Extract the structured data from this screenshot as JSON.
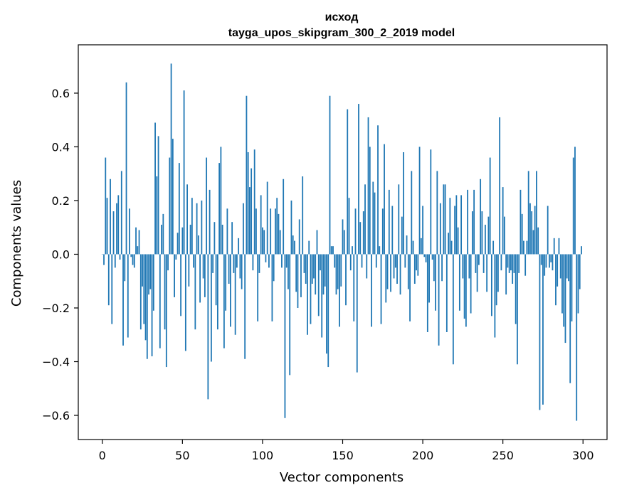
{
  "chart_data": {
    "type": "bar",
    "title": "исход",
    "subtitle": "tayga_upos_skipgram_300_2_2019 model",
    "xlabel": "Vector components",
    "ylabel": "Components values",
    "xlim": [
      -15,
      315
    ],
    "ylim": [
      -0.69,
      0.78
    ],
    "xticks": [
      0,
      50,
      100,
      150,
      200,
      250,
      300
    ],
    "xtick_labels": [
      "0",
      "50",
      "100",
      "150",
      "200",
      "250",
      "300"
    ],
    "yticks": [
      0.6,
      0.4,
      0.2,
      0.0,
      -0.2,
      -0.4,
      -0.6
    ],
    "ytick_labels": [
      "0.6",
      "0.4",
      "0.2",
      "0.0",
      "−0.2",
      "−0.4",
      "−0.6"
    ],
    "bar_color": "#1f77b4",
    "grid": false,
    "values": [
      0.0,
      -0.04,
      0.36,
      0.21,
      -0.19,
      0.28,
      -0.26,
      0.16,
      -0.05,
      0.19,
      0.22,
      -0.02,
      0.31,
      -0.34,
      -0.1,
      0.64,
      -0.31,
      0.17,
      -0.01,
      -0.04,
      -0.05,
      0.1,
      0.03,
      0.09,
      -0.28,
      -0.12,
      -0.26,
      -0.32,
      -0.39,
      -0.15,
      -0.13,
      -0.38,
      -0.21,
      0.49,
      0.29,
      0.44,
      -0.35,
      0.11,
      0.15,
      -0.28,
      -0.42,
      -0.06,
      0.36,
      0.71,
      0.43,
      -0.16,
      -0.02,
      0.08,
      0.34,
      -0.23,
      0.1,
      0.61,
      -0.36,
      0.26,
      -0.12,
      0.11,
      0.21,
      -0.05,
      -0.28,
      0.19,
      0.07,
      -0.18,
      0.2,
      -0.09,
      -0.16,
      0.36,
      -0.54,
      0.24,
      -0.4,
      -0.07,
      0.12,
      -0.19,
      -0.28,
      0.34,
      0.4,
      0.11,
      -0.35,
      -0.21,
      0.17,
      -0.11,
      -0.27,
      0.12,
      -0.07,
      -0.3,
      -0.05,
      0.06,
      -0.09,
      -0.13,
      0.19,
      -0.39,
      0.59,
      0.38,
      0.25,
      0.32,
      -0.06,
      0.39,
      0.17,
      -0.25,
      -0.07,
      0.22,
      0.1,
      0.09,
      -0.03,
      0.27,
      -0.05,
      0.17,
      -0.25,
      -0.1,
      0.17,
      0.21,
      0.15,
      0.09,
      -0.05,
      0.28,
      -0.61,
      -0.05,
      -0.13,
      -0.45,
      0.2,
      0.07,
      0.05,
      -0.14,
      -0.2,
      0.13,
      -0.16,
      0.29,
      -0.07,
      -0.11,
      -0.3,
      0.05,
      -0.26,
      -0.11,
      -0.09,
      -0.15,
      0.09,
      -0.23,
      -0.06,
      -0.31,
      -0.15,
      -0.12,
      -0.37,
      -0.42,
      0.59,
      0.03,
      0.03,
      -0.05,
      -0.15,
      -0.13,
      -0.27,
      -0.12,
      0.13,
      0.09,
      -0.19,
      0.54,
      0.21,
      -0.06,
      0.03,
      -0.25,
      0.17,
      -0.44,
      0.56,
      0.12,
      -0.05,
      0.16,
      0.26,
      -0.09,
      0.51,
      0.4,
      -0.27,
      0.27,
      0.23,
      -0.05,
      0.48,
      0.03,
      -0.26,
      0.17,
      0.41,
      -0.18,
      -0.13,
      0.24,
      -0.14,
      0.18,
      -0.09,
      -0.05,
      -0.11,
      0.26,
      -0.15,
      0.14,
      0.38,
      -0.05,
      0.07,
      -0.13,
      -0.25,
      0.31,
      0.05,
      -0.11,
      -0.06,
      -0.08,
      0.4,
      0.06,
      0.18,
      -0.01,
      -0.03,
      -0.29,
      -0.18,
      0.39,
      -0.02,
      -0.1,
      -0.21,
      0.31,
      -0.34,
      0.19,
      -0.1,
      0.26,
      0.26,
      -0.29,
      0.08,
      0.21,
      0.05,
      -0.41,
      0.18,
      0.22,
      0.1,
      -0.21,
      0.22,
      -0.09,
      -0.24,
      -0.27,
      0.24,
      -0.09,
      -0.22,
      0.16,
      0.24,
      -0.07,
      -0.14,
      -0.04,
      0.28,
      0.16,
      -0.07,
      0.11,
      -0.14,
      0.14,
      0.36,
      -0.23,
      0.05,
      -0.31,
      -0.19,
      -0.14,
      0.51,
      -0.06,
      0.25,
      0.14,
      -0.15,
      -0.05,
      -0.07,
      -0.06,
      -0.11,
      -0.07,
      -0.26,
      -0.41,
      -0.07,
      0.24,
      0.15,
      0.05,
      -0.08,
      0.05,
      0.31,
      0.19,
      0.16,
      0.09,
      0.18,
      0.31,
      0.1,
      -0.58,
      -0.04,
      -0.56,
      -0.08,
      -0.05,
      0.18,
      -0.05,
      -0.03,
      -0.06,
      0.06,
      -0.19,
      -0.12,
      0.06,
      -0.09,
      -0.22,
      -0.27,
      -0.33,
      -0.09,
      -0.1,
      -0.48,
      -0.25,
      0.36,
      0.4,
      -0.62,
      -0.22,
      -0.13,
      0.03
    ]
  }
}
